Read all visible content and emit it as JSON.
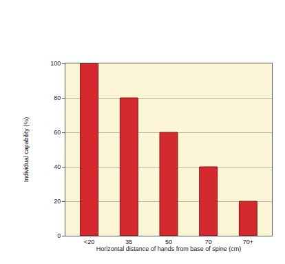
{
  "chart_data": {
    "type": "bar",
    "x_label": "Horizontal distance of hands from base of spine (cm)",
    "y_label": "Individual capability (%)",
    "categories": [
      "<20",
      "35",
      "50",
      "70",
      "70+"
    ],
    "values": [
      100,
      80,
      60,
      40,
      20
    ],
    "color": "#d42a2f",
    "ylim": [
      0,
      100
    ],
    "yticks": [
      0,
      20,
      40,
      60,
      80,
      100
    ],
    "grid": true
  }
}
